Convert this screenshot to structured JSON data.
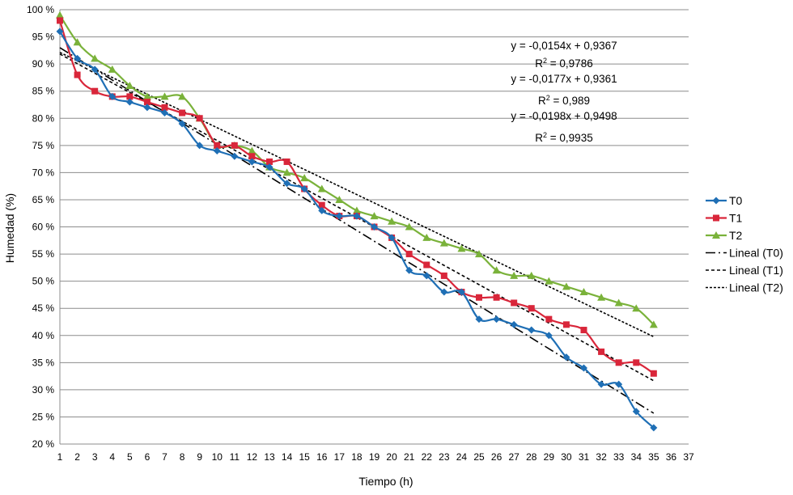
{
  "chart_data": {
    "type": "line",
    "title": "",
    "xlabel": "Tiempo (h)",
    "ylabel": "Humedad (%)",
    "xlim": [
      1,
      37
    ],
    "ylim": [
      0.2,
      1.0
    ],
    "y_tick_labels": [
      "20 %",
      "25 %",
      "30 %",
      "35 %",
      "40 %",
      "45 %",
      "50 %",
      "55 %",
      "60 %",
      "65 %",
      "70 %",
      "75 %",
      "80 %",
      "85 %",
      "90 %",
      "95 %",
      "100 %"
    ],
    "x_tick_labels": [
      "1",
      "2",
      "3",
      "4",
      "5",
      "6",
      "7",
      "8",
      "9",
      "10",
      "11",
      "12",
      "13",
      "14",
      "15",
      "16",
      "17",
      "18",
      "19",
      "20",
      "21",
      "22",
      "23",
      "24",
      "25",
      "26",
      "27",
      "28",
      "29",
      "30",
      "31",
      "32",
      "33",
      "34",
      "35",
      "36",
      "37"
    ],
    "grid": "horizontal",
    "legend_position": "right",
    "series": [
      {
        "name": "T0",
        "color": "#1f6fb5",
        "marker": "diamond",
        "x": [
          1,
          2,
          3,
          4,
          5,
          6,
          7,
          8,
          9,
          10,
          11,
          12,
          13,
          14,
          15,
          16,
          17,
          18,
          19,
          20,
          21,
          22,
          23,
          24,
          25,
          26,
          27,
          28,
          29,
          30,
          31,
          32,
          33,
          34,
          35
        ],
        "values": [
          0.96,
          0.91,
          0.89,
          0.84,
          0.83,
          0.82,
          0.81,
          0.79,
          0.75,
          0.74,
          0.73,
          0.72,
          0.71,
          0.68,
          0.67,
          0.63,
          0.62,
          0.62,
          0.6,
          0.58,
          0.52,
          0.51,
          0.48,
          0.48,
          0.43,
          0.43,
          0.42,
          0.41,
          0.4,
          0.36,
          0.34,
          0.31,
          0.31,
          0.26,
          0.23
        ]
      },
      {
        "name": "T1",
        "color": "#d9263a",
        "marker": "square",
        "x": [
          1,
          2,
          3,
          4,
          5,
          6,
          7,
          8,
          9,
          10,
          11,
          12,
          13,
          14,
          15,
          16,
          17,
          18,
          19,
          20,
          21,
          22,
          23,
          24,
          25,
          26,
          27,
          28,
          29,
          30,
          31,
          32,
          33,
          34,
          35
        ],
        "values": [
          0.98,
          0.88,
          0.85,
          0.84,
          0.84,
          0.83,
          0.82,
          0.81,
          0.8,
          0.75,
          0.75,
          0.73,
          0.72,
          0.72,
          0.67,
          0.64,
          0.62,
          0.62,
          0.6,
          0.58,
          0.55,
          0.53,
          0.51,
          0.48,
          0.47,
          0.47,
          0.46,
          0.45,
          0.43,
          0.42,
          0.41,
          0.37,
          0.35,
          0.35,
          0.33
        ]
      },
      {
        "name": "T2",
        "color": "#7ab23a",
        "marker": "triangle",
        "x": [
          1,
          2,
          3,
          4,
          5,
          6,
          7,
          8,
          9,
          10,
          11,
          12,
          13,
          14,
          15,
          16,
          17,
          18,
          19,
          20,
          21,
          22,
          23,
          24,
          25,
          26,
          27,
          28,
          29,
          30,
          31,
          32,
          33,
          34,
          35
        ],
        "values": [
          0.99,
          0.94,
          0.91,
          0.89,
          0.86,
          0.84,
          0.84,
          0.84,
          0.8,
          0.75,
          0.75,
          0.74,
          0.71,
          0.7,
          0.69,
          0.67,
          0.65,
          0.63,
          0.62,
          0.61,
          0.6,
          0.58,
          0.57,
          0.56,
          0.55,
          0.52,
          0.51,
          0.51,
          0.5,
          0.49,
          0.48,
          0.47,
          0.46,
          0.45,
          0.42
        ]
      }
    ],
    "trendlines": [
      {
        "name": "Lineal (T0)",
        "slope": -0.0198,
        "intercept": 0.9498,
        "x_range": [
          1,
          35
        ],
        "dash": "12,4,2,4"
      },
      {
        "name": "Lineal (T1)",
        "slope": -0.0177,
        "intercept": 0.9361,
        "x_range": [
          1,
          35
        ],
        "dash": "4,3"
      },
      {
        "name": "Lineal (T2)",
        "slope": -0.0154,
        "intercept": 0.9367,
        "x_range": [
          1,
          35
        ],
        "dash": "3,2"
      }
    ],
    "annotations": [
      {
        "equation": "y = -0,0154x + 0,9367",
        "r2_label": "R",
        "r2_sup": "2",
        "r2_value": " = 0,9786"
      },
      {
        "equation": "y = -0,0177x + 0,9361",
        "r2_label": "R",
        "r2_sup": "2",
        "r2_value": " = 0,989"
      },
      {
        "equation": "y = -0,0198x + 0,9498",
        "r2_label": "R",
        "r2_sup": "2",
        "r2_value": " = 0,9935"
      }
    ],
    "legend_entries": [
      "T0",
      "T1",
      "T2",
      "Lineal (T0)",
      "Lineal (T1)",
      "Lineal (T2)"
    ]
  }
}
